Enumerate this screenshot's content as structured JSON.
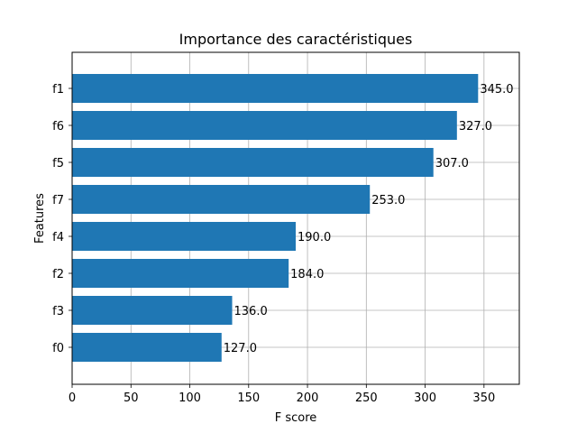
{
  "chart_data": {
    "type": "bar",
    "orientation": "horizontal",
    "title": "Importance des caractéristiques",
    "xlabel": "F score",
    "ylabel": "Features",
    "xlim": [
      0,
      380
    ],
    "xticks": [
      0,
      50,
      100,
      150,
      200,
      250,
      300,
      350
    ],
    "grid": true,
    "bar_color": "#1f77b4",
    "categories": [
      "f0",
      "f3",
      "f2",
      "f4",
      "f7",
      "f5",
      "f6",
      "f1"
    ],
    "values": [
      127.0,
      136.0,
      184.0,
      190.0,
      253.0,
      307.0,
      327.0,
      345.0
    ],
    "value_labels": [
      "127.0",
      "136.0",
      "184.0",
      "190.0",
      "253.0",
      "307.0",
      "327.0",
      "345.0"
    ]
  }
}
